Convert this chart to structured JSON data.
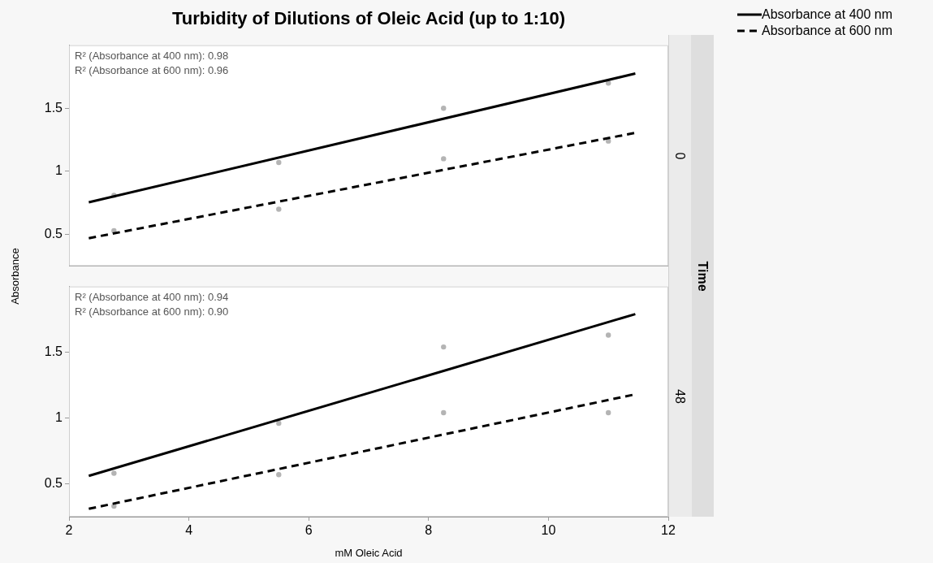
{
  "chart_data": [
    {
      "type": "scatter",
      "title": "Turbidity of Dilutions of Oleic Acid (up to 1:10)",
      "subtitle": "0",
      "ylabel": "Absorbance",
      "y2label": "Time",
      "annotations": [
        "R² (Absorbance at 400 nm): 0.98",
        "R² (Absorbance at 600 nm): 0.96"
      ],
      "xlim": [
        2,
        12
      ],
      "xticks": [
        2,
        4,
        6,
        8,
        10,
        12
      ],
      "ylim": [
        0.25,
        2.0
      ],
      "yticks": [
        0.5,
        1.0,
        1.5
      ],
      "tick_labels": "y",
      "grid": false,
      "legend": "top right",
      "series": [
        {
          "type": "scatter",
          "color": "#b4b4b4",
          "marker": "circle",
          "x": [
            2.75,
            5.5,
            8.25,
            11.0
          ],
          "values": [
            0.81,
            1.07,
            1.5,
            1.7
          ]
        },
        {
          "type": "scatter",
          "color": "#b4b4b4",
          "marker": "circle",
          "x": [
            2.75,
            5.5,
            8.25,
            11.0
          ],
          "values": [
            0.53,
            0.7,
            1.1,
            1.24
          ]
        },
        {
          "type": "line",
          "name": "Absorbance at 400 nm",
          "color": "#000000",
          "line_style": "solid",
          "x": [
            2.33,
            11.45
          ],
          "values": [
            0.755,
            1.775
          ]
        },
        {
          "type": "line",
          "name": "Absorbance at 600 nm",
          "color": "#000000",
          "line_style": "dashed",
          "x": [
            2.33,
            11.45
          ],
          "values": [
            0.47,
            1.305
          ]
        }
      ]
    },
    {
      "type": "scatter",
      "subtitle": "48",
      "xlabel": "mM Oleic Acid",
      "annotations": [
        "R² (Absorbance at 400 nm): 0.94",
        "R² (Absorbance at 600 nm): 0.90"
      ],
      "xlim": [
        2,
        12
      ],
      "xticks": [
        2,
        4,
        6,
        8,
        10,
        12
      ],
      "ylim": [
        0.25,
        2.0
      ],
      "yticks": [
        0.5,
        1.0,
        1.5
      ],
      "grid": false,
      "series": [
        {
          "type": "scatter",
          "color": "#b4b4b4",
          "marker": "circle",
          "x": [
            2.75,
            5.5,
            8.25,
            11.0
          ],
          "values": [
            0.58,
            0.96,
            1.54,
            1.63
          ]
        },
        {
          "type": "scatter",
          "color": "#b4b4b4",
          "marker": "circle",
          "x": [
            2.75,
            5.5,
            8.25,
            11.0
          ],
          "values": [
            0.33,
            0.57,
            1.04,
            1.04
          ]
        },
        {
          "type": "line",
          "color": "#000000",
          "line_style": "solid",
          "x": [
            2.33,
            11.45
          ],
          "values": [
            0.56,
            1.79
          ]
        },
        {
          "type": "line",
          "color": "#000000",
          "line_style": "dashed",
          "x": [
            2.33,
            11.45
          ],
          "values": [
            0.31,
            1.18
          ]
        }
      ]
    }
  ]
}
